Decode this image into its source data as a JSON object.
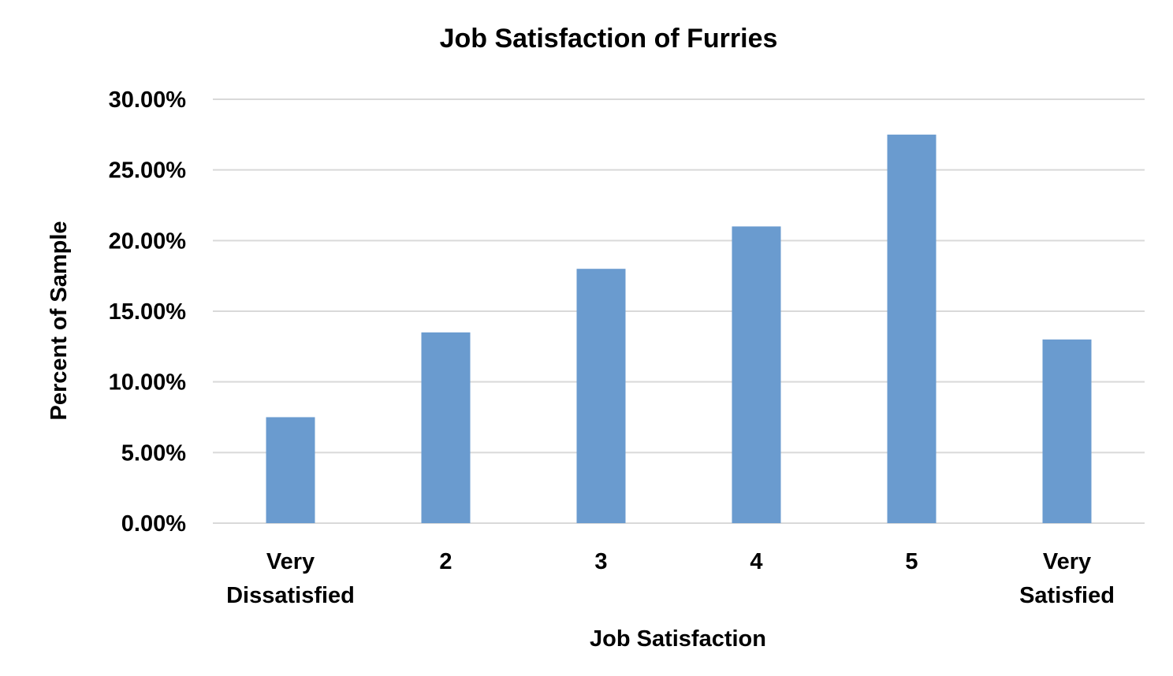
{
  "chart_data": {
    "type": "bar",
    "title": "Job Satisfaction of Furries",
    "xlabel": "Job Satisfaction",
    "ylabel": "Percent of Sample",
    "categories": [
      "Very Dissatisfied",
      "2",
      "3",
      "4",
      "5",
      "Very Satisfied"
    ],
    "category_lines": [
      [
        "Very",
        "Dissatisfied"
      ],
      [
        "2"
      ],
      [
        "3"
      ],
      [
        "4"
      ],
      [
        "5"
      ],
      [
        "Very",
        "Satisfied"
      ]
    ],
    "values": [
      7.5,
      13.5,
      18.0,
      21.0,
      27.5,
      13.0
    ],
    "ylim": [
      0,
      30
    ],
    "yticks": [
      0,
      5,
      10,
      15,
      20,
      25,
      30
    ],
    "ytick_labels": [
      "0.00%",
      "5.00%",
      "10.00%",
      "15.00%",
      "20.00%",
      "25.00%",
      "30.00%"
    ],
    "y_unit": "percent",
    "bar_color": "#6a9bcf",
    "grid": true,
    "legend": "none"
  }
}
